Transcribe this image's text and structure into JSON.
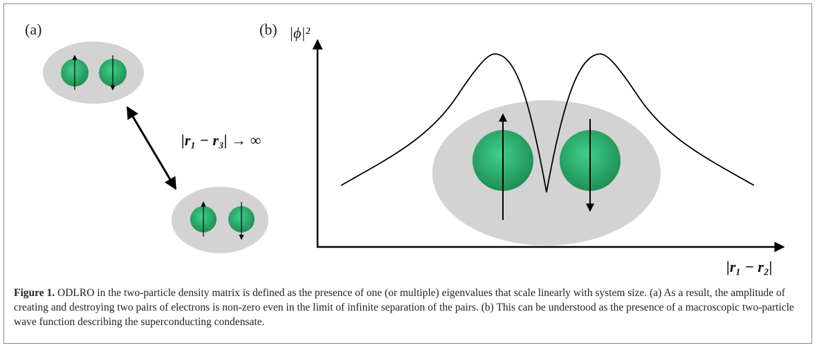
{
  "figure": {
    "panel_a": {
      "label": "(a)",
      "separation": "|r₁ − r₃| → ∞"
    },
    "panel_b": {
      "label": "(b)",
      "y_axis": "|ϕ|²",
      "x_axis": "|r₁ − r₂|"
    },
    "caption": {
      "label": "Figure 1.",
      "text": "ODLRO in the two-particle density matrix is defined as the presence of one (or multiple) eigenvalues that scale linearly with system size. (a) As a result, the amplitude of creating and destroying two pairs of electrons is non-zero even in the limit of infinite separation of the pairs. (b) This can be understood as the presence of a macroscopic two-particle wave function describing the superconducting condensate."
    }
  }
}
